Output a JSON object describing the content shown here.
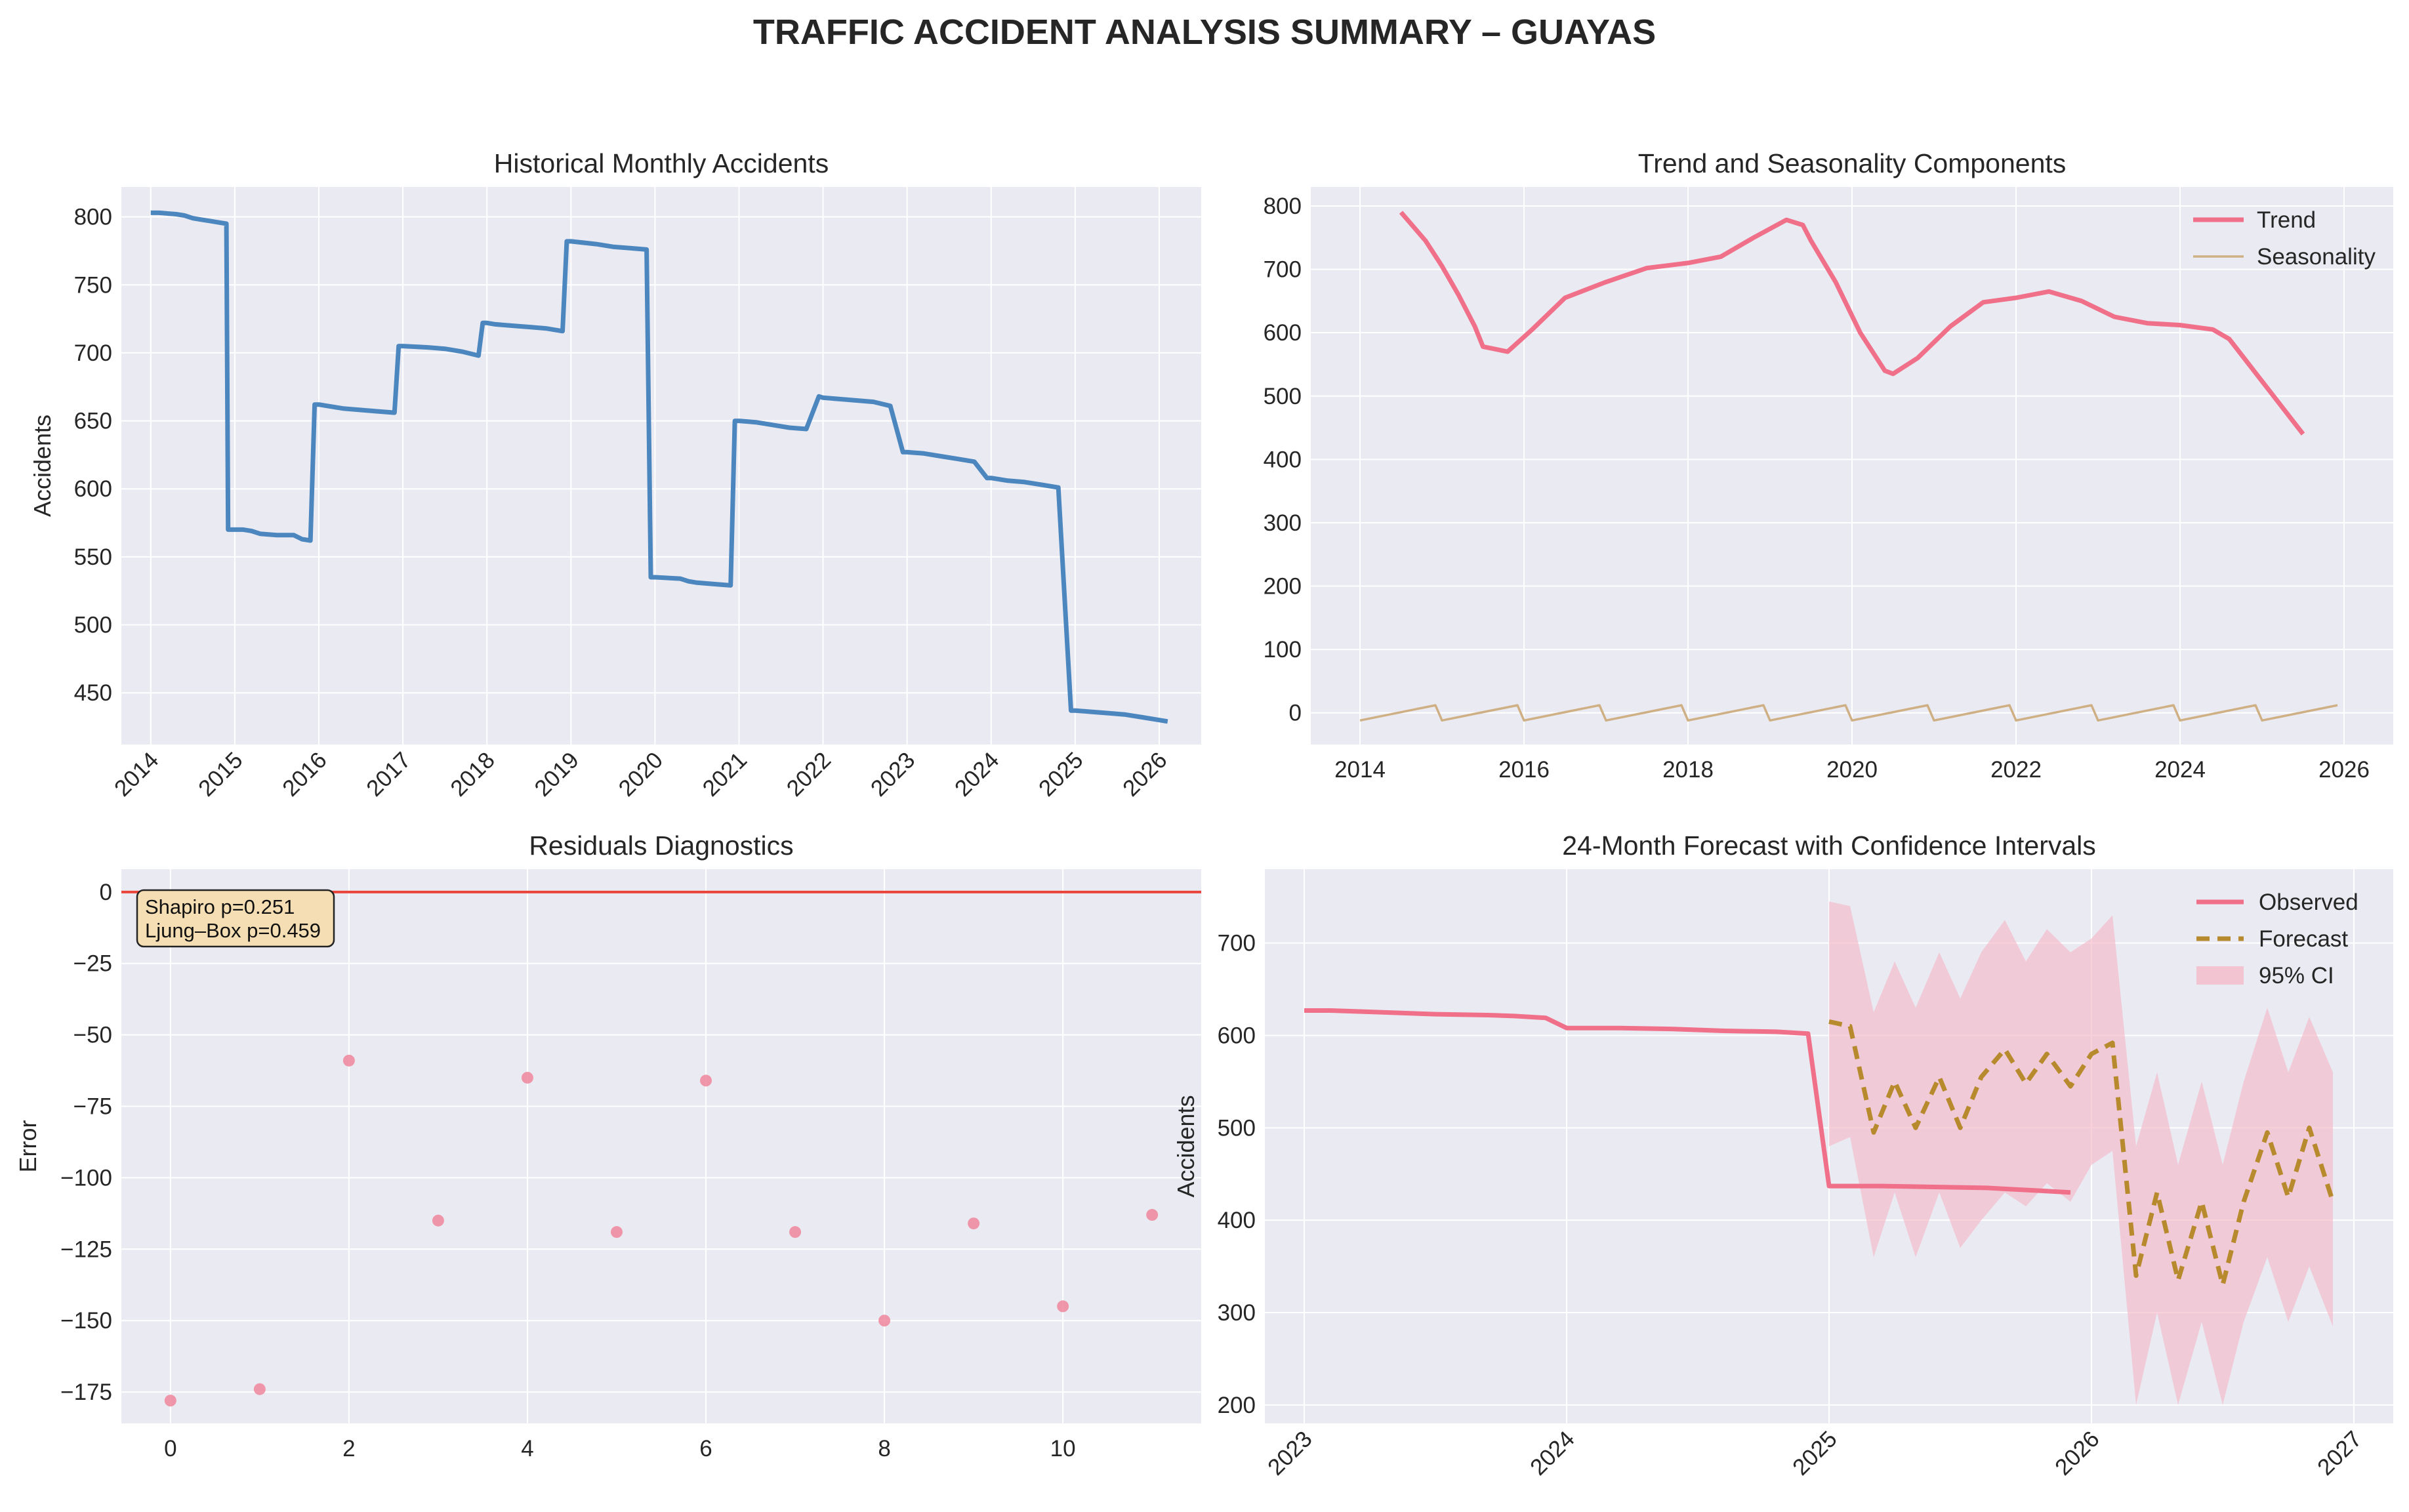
{
  "figure": {
    "title": "TRAFFIC ACCIDENT ANALYSIS SUMMARY – GUAYAS"
  },
  "chart_data": [
    {
      "id": "hist",
      "type": "line",
      "title": "Historical Monthly Accidents",
      "xlabel": "",
      "ylabel": "Accidents",
      "xlim": [
        2013.65,
        2026.5
      ],
      "ylim": [
        412,
        822
      ],
      "xticks": [
        2014,
        2015,
        2016,
        2017,
        2018,
        2019,
        2020,
        2021,
        2022,
        2023,
        2024,
        2025,
        2026
      ],
      "xtick_labels": [
        "2014",
        "2015",
        "2016",
        "2017",
        "2018",
        "2019",
        "2020",
        "2021",
        "2022",
        "2023",
        "2024",
        "2025",
        "2026"
      ],
      "xtick_rotation": 45,
      "yticks": [
        450,
        500,
        550,
        600,
        650,
        700,
        750,
        800
      ],
      "grid": true,
      "color": "#4c86be",
      "series": [
        {
          "x": [
            2014.0,
            2014.1,
            2014.3,
            2014.4,
            2014.5,
            2014.6,
            2014.7,
            2014.8,
            2014.9,
            2014.92,
            2015.0,
            2015.1,
            2015.2,
            2015.3,
            2015.5,
            2015.7,
            2015.8,
            2015.9,
            2015.95,
            2016.0,
            2016.1,
            2016.3,
            2016.5,
            2016.7,
            2016.9,
            2016.95,
            2017.0,
            2017.3,
            2017.5,
            2017.7,
            2017.9,
            2017.95,
            2018.0,
            2018.1,
            2018.3,
            2018.5,
            2018.7,
            2018.9,
            2018.95,
            2019.0,
            2019.3,
            2019.5,
            2019.7,
            2019.9,
            2019.95,
            2020.0,
            2020.3,
            2020.4,
            2020.5,
            2020.7,
            2020.9,
            2020.95,
            2021.0,
            2021.2,
            2021.4,
            2021.6,
            2021.8,
            2021.95,
            2022.0,
            2022.2,
            2022.4,
            2022.6,
            2022.8,
            2022.95,
            2023.0,
            2023.2,
            2023.4,
            2023.6,
            2023.8,
            2023.95,
            2024.0,
            2024.2,
            2024.4,
            2024.6,
            2024.8,
            2024.95,
            2025.0,
            2025.2,
            2025.4,
            2025.6,
            2025.8,
            2026.0,
            2026.1
          ],
          "y": [
            803,
            803,
            802,
            801,
            799,
            798,
            797,
            796,
            795,
            570,
            570,
            570,
            569,
            567,
            566,
            566,
            563,
            562,
            662,
            662,
            661,
            659,
            658,
            657,
            656,
            705,
            705,
            704,
            703,
            701,
            698,
            722,
            722,
            721,
            720,
            719,
            718,
            716,
            782,
            782,
            780,
            778,
            777,
            776,
            535,
            535,
            534,
            532,
            531,
            530,
            529,
            650,
            650,
            649,
            647,
            645,
            644,
            668,
            667,
            666,
            665,
            664,
            661,
            627,
            627,
            626,
            624,
            622,
            620,
            608,
            608,
            606,
            605,
            603,
            601,
            437,
            437,
            436,
            435,
            434,
            432,
            430,
            429
          ]
        }
      ]
    },
    {
      "id": "decomp",
      "type": "line",
      "title": "Trend and Seasonality Components",
      "xlabel": "",
      "ylabel": "",
      "xlim": [
        2013.4,
        2026.6
      ],
      "ylim": [
        -50,
        830
      ],
      "xticks": [
        2014,
        2016,
        2018,
        2020,
        2022,
        2024,
        2026
      ],
      "xtick_labels": [
        "2014",
        "2016",
        "2018",
        "2020",
        "2022",
        "2024",
        "2026"
      ],
      "yticks": [
        0,
        100,
        200,
        300,
        400,
        500,
        600,
        700,
        800
      ],
      "grid": true,
      "legend": "top-right",
      "series": [
        {
          "name": "Trend",
          "color": "#f0708a",
          "x": [
            2014.5,
            2014.8,
            2015.0,
            2015.2,
            2015.4,
            2015.5,
            2015.8,
            2016.1,
            2016.5,
            2017.0,
            2017.5,
            2018.0,
            2018.4,
            2018.8,
            2019.2,
            2019.4,
            2019.5,
            2019.8,
            2020.1,
            2020.4,
            2020.5,
            2020.8,
            2021.2,
            2021.6,
            2022.0,
            2022.4,
            2022.8,
            2023.2,
            2023.6,
            2024.0,
            2024.4,
            2024.6,
            2024.9,
            2025.2,
            2025.5
          ],
          "y": [
            790,
            745,
            705,
            660,
            610,
            578,
            570,
            605,
            655,
            680,
            702,
            710,
            720,
            750,
            778,
            770,
            745,
            680,
            600,
            540,
            535,
            560,
            610,
            648,
            655,
            665,
            650,
            625,
            615,
            612,
            605,
            590,
            540,
            490,
            440
          ]
        },
        {
          "name": "Seasonality",
          "color": "#cfb085",
          "x": [
            2014.0,
            2014.92,
            2015.0,
            2015.92,
            2016.0,
            2016.92,
            2017.0,
            2017.92,
            2018.0,
            2018.92,
            2019.0,
            2019.92,
            2020.0,
            2020.92,
            2021.0,
            2021.92,
            2022.0,
            2022.92,
            2023.0,
            2023.92,
            2024.0,
            2024.92,
            2025.0,
            2025.92
          ],
          "y": [
            -12,
            12,
            -12,
            12,
            -12,
            12,
            -12,
            12,
            -12,
            12,
            -12,
            12,
            -12,
            12,
            -12,
            12,
            -12,
            12,
            -12,
            12,
            -12,
            12,
            -12,
            12
          ]
        }
      ]
    },
    {
      "id": "resid",
      "type": "scatter",
      "title": "Residuals Diagnostics",
      "xlabel": "",
      "ylabel": "Error",
      "xlim": [
        -0.55,
        11.55
      ],
      "ylim": [
        -186,
        8
      ],
      "xticks": [
        0,
        2,
        4,
        6,
        8,
        10
      ],
      "xtick_labels": [
        "0",
        "2",
        "4",
        "6",
        "8",
        "10"
      ],
      "yticks": [
        0,
        -25,
        -50,
        -75,
        -100,
        -125,
        -150,
        -175
      ],
      "ytick_labels": [
        "0",
        "−25",
        "−50",
        "−75",
        "−100",
        "−125",
        "−150",
        "−175"
      ],
      "grid": true,
      "color": "#f0869c",
      "zero_line_color": "#e8443a",
      "annotation": [
        "Shapiro p=0.251",
        "Ljung–Box p=0.459"
      ],
      "x": [
        0,
        1,
        2,
        3,
        4,
        5,
        6,
        7,
        8,
        9,
        10,
        11
      ],
      "y": [
        -178,
        -174,
        -59,
        -115,
        -65,
        -119,
        -66,
        -119,
        -150,
        -116,
        -145,
        -113
      ]
    },
    {
      "id": "forecast",
      "type": "line",
      "title": "24-Month Forecast with Confidence Intervals",
      "xlabel": "",
      "ylabel": "Accidents",
      "xlim": [
        2022.85,
        2027.15
      ],
      "ylim": [
        180,
        780
      ],
      "xticks": [
        2023,
        2024,
        2025,
        2026,
        2027
      ],
      "xtick_labels": [
        "2023",
        "2024",
        "2025",
        "2026",
        "2027"
      ],
      "xtick_rotation": 45,
      "yticks": [
        200,
        300,
        400,
        500,
        600,
        700
      ],
      "grid": true,
      "legend": "top-right",
      "series": [
        {
          "name": "Observed",
          "color": "#f0708a",
          "x": [
            2023.0,
            2023.1,
            2023.2,
            2023.3,
            2023.5,
            2023.7,
            2023.8,
            2023.92,
            2024.0,
            2024.2,
            2024.4,
            2024.6,
            2024.8,
            2024.92,
            2025.0,
            2025.2,
            2025.4,
            2025.6,
            2025.8,
            2025.92
          ],
          "y": [
            627,
            627,
            626,
            625,
            623,
            622,
            621,
            619,
            608,
            608,
            607,
            605,
            604,
            602,
            437,
            437,
            436,
            435,
            432,
            430
          ]
        },
        {
          "name": "Forecast",
          "color": "#b88a2e",
          "x": [
            2025.0,
            2025.08,
            2025.17,
            2025.25,
            2025.33,
            2025.42,
            2025.5,
            2025.58,
            2025.67,
            2025.75,
            2025.83,
            2025.92,
            2026.0,
            2026.08,
            2026.17,
            2026.25,
            2026.33,
            2026.42,
            2026.5,
            2026.58,
            2026.67,
            2026.75,
            2026.83,
            2026.92
          ],
          "y": [
            615,
            610,
            495,
            550,
            500,
            555,
            500,
            555,
            585,
            548,
            580,
            545,
            580,
            592,
            340,
            430,
            335,
            420,
            330,
            420,
            495,
            425,
            500,
            420
          ]
        },
        {
          "name": "95% CI",
          "color": "#f4b9c8",
          "x": [
            2025.0,
            2025.08,
            2025.17,
            2025.25,
            2025.33,
            2025.42,
            2025.5,
            2025.58,
            2025.67,
            2025.75,
            2025.83,
            2025.92,
            2026.0,
            2026.08,
            2026.17,
            2026.25,
            2026.33,
            2026.42,
            2026.5,
            2026.58,
            2026.67,
            2026.75,
            2026.83,
            2026.92
          ],
          "lower": [
            480,
            490,
            360,
            430,
            360,
            430,
            370,
            400,
            430,
            415,
            440,
            420,
            460,
            475,
            200,
            300,
            200,
            290,
            200,
            290,
            360,
            290,
            350,
            285
          ],
          "upper": [
            745,
            740,
            625,
            680,
            630,
            690,
            640,
            690,
            725,
            680,
            715,
            690,
            705,
            730,
            480,
            560,
            460,
            550,
            460,
            550,
            630,
            560,
            620,
            560
          ]
        }
      ]
    }
  ]
}
